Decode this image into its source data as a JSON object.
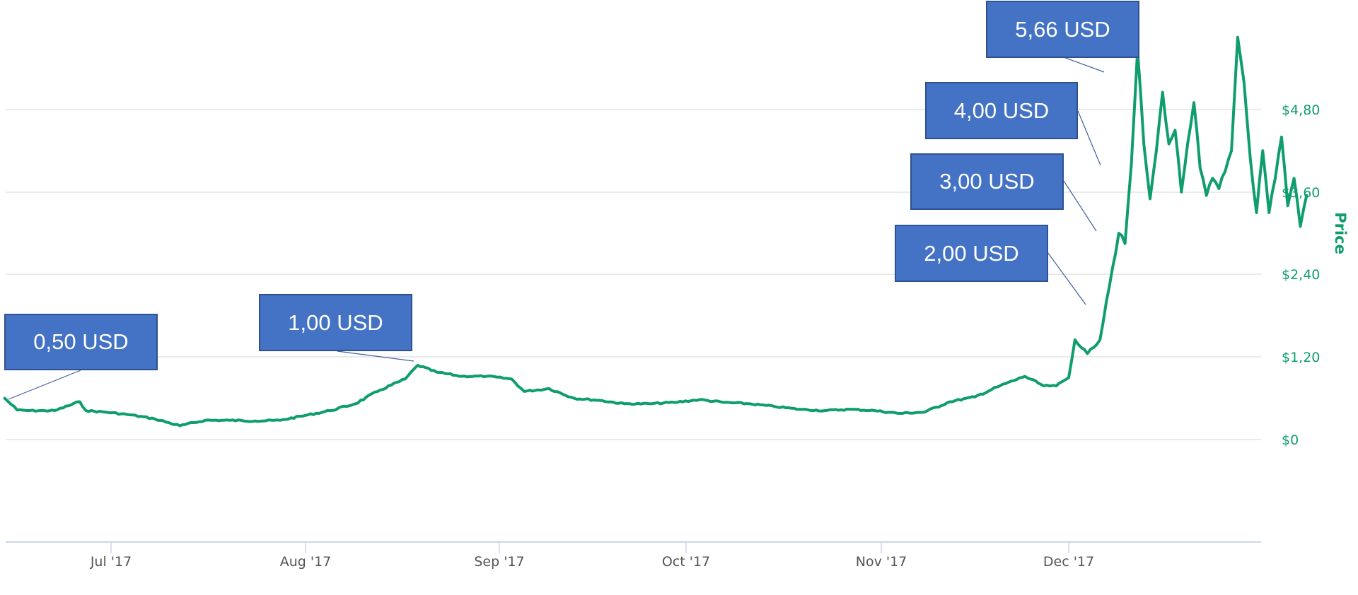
{
  "chart_data": {
    "type": "line",
    "title": "",
    "xlabel": "",
    "ylabel": "Price",
    "ylim": [
      0,
      5.8
    ],
    "grid": true,
    "y_ticks": [
      "$0",
      "$1,20",
      "$2,40",
      "$3,60",
      "$4,80"
    ],
    "y_tick_values": [
      0,
      1.2,
      2.4,
      3.6,
      4.8
    ],
    "x_ticks": [
      "Jul '17",
      "Aug '17",
      "Sep '17",
      "Oct '17",
      "Nov '17",
      "Dec '17"
    ],
    "line_color": "#0f9d6e",
    "series": [
      {
        "name": "Price",
        "x": [
          "2017-06-14",
          "2017-06-16",
          "2017-06-18",
          "2017-06-22",
          "2017-06-26",
          "2017-06-27",
          "2017-06-30",
          "2017-07-04",
          "2017-07-08",
          "2017-07-12",
          "2017-07-16",
          "2017-07-20",
          "2017-07-24",
          "2017-07-28",
          "2017-08-01",
          "2017-08-05",
          "2017-08-09",
          "2017-08-13",
          "2017-08-17",
          "2017-08-19",
          "2017-08-22",
          "2017-08-26",
          "2017-08-30",
          "2017-09-03",
          "2017-09-05",
          "2017-09-09",
          "2017-09-13",
          "2017-09-17",
          "2017-09-21",
          "2017-09-25",
          "2017-09-29",
          "2017-10-03",
          "2017-10-07",
          "2017-10-11",
          "2017-10-15",
          "2017-10-19",
          "2017-10-23",
          "2017-10-27",
          "2017-10-31",
          "2017-11-04",
          "2017-11-08",
          "2017-11-12",
          "2017-11-16",
          "2017-11-20",
          "2017-11-24",
          "2017-11-27",
          "2017-11-29",
          "2017-12-01",
          "2017-12-02",
          "2017-12-04",
          "2017-12-06",
          "2017-12-07",
          "2017-12-09",
          "2017-12-10",
          "2017-12-11",
          "2017-12-12",
          "2017-12-13",
          "2017-12-14",
          "2017-12-15",
          "2017-12-16",
          "2017-12-17",
          "2017-12-18",
          "2017-12-19",
          "2017-12-20",
          "2017-12-21",
          "2017-12-22",
          "2017-12-23",
          "2017-12-24",
          "2017-12-25",
          "2017-12-26",
          "2017-12-27",
          "2017-12-28",
          "2017-12-29",
          "2017-12-30",
          "2017-12-31",
          "2018-01-01",
          "2018-01-02",
          "2018-01-03",
          "2018-01-04",
          "2018-01-05",
          "2018-01-06",
          "2018-01-07",
          "2018-01-08"
        ],
        "values": [
          0.6,
          0.43,
          0.42,
          0.42,
          0.55,
          0.42,
          0.4,
          0.36,
          0.3,
          0.2,
          0.28,
          0.28,
          0.27,
          0.28,
          0.35,
          0.42,
          0.52,
          0.72,
          0.88,
          1.08,
          0.98,
          0.92,
          0.92,
          0.88,
          0.7,
          0.74,
          0.6,
          0.57,
          0.52,
          0.52,
          0.54,
          0.58,
          0.54,
          0.52,
          0.48,
          0.44,
          0.42,
          0.44,
          0.42,
          0.38,
          0.4,
          0.55,
          0.62,
          0.78,
          0.92,
          0.78,
          0.78,
          0.9,
          1.45,
          1.25,
          1.45,
          2.0,
          3.0,
          2.85,
          4.0,
          5.66,
          4.3,
          3.5,
          4.2,
          5.05,
          4.3,
          4.5,
          3.6,
          4.3,
          4.9,
          3.95,
          3.55,
          3.8,
          3.65,
          3.9,
          4.2,
          5.85,
          5.2,
          4.1,
          3.3,
          4.2,
          3.3,
          3.8,
          4.4,
          3.4,
          3.8,
          3.1,
          3.55
        ]
      }
    ],
    "annotations": [
      {
        "label": "0,50 USD",
        "value": 0.5
      },
      {
        "label": "1,00 USD",
        "value": 1.0
      },
      {
        "label": "2,00 USD",
        "value": 2.0
      },
      {
        "label": "3,00 USD",
        "value": 3.0
      },
      {
        "label": "4,00 USD",
        "value": 4.0
      },
      {
        "label": "5,66 USD",
        "value": 5.66
      }
    ]
  },
  "axis": {
    "y_title": "Price",
    "y_labels": [
      "$4,80",
      "$3,60",
      "$2,40",
      "$1,20",
      "$0"
    ],
    "x_labels": [
      "Jul '17",
      "Aug '17",
      "Sep '17",
      "Oct '17",
      "Nov '17",
      "Dec '17"
    ]
  },
  "annotations": {
    "a050": "0,50 USD",
    "a100": "1,00 USD",
    "a200": "2,00 USD",
    "a300": "3,00 USD",
    "a400": "4,00 USD",
    "a566": "5,66 USD"
  }
}
